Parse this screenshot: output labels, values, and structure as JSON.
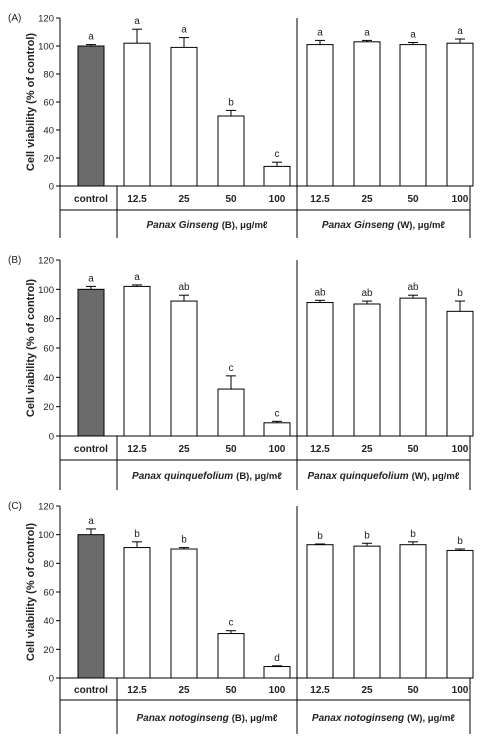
{
  "chart_data": [
    {
      "type": "bar",
      "panel_label": "(A)",
      "ylabel": "Cell viability (% of control)",
      "ylim": [
        0,
        120
      ],
      "yticks": [
        "0",
        "20",
        "40",
        "60",
        "80",
        "100",
        "120"
      ],
      "control_label": "control",
      "categories": [
        "control",
        "12.5",
        "25",
        "50",
        "100",
        "12.5",
        "25",
        "50",
        "100"
      ],
      "values": [
        100,
        102,
        99,
        50,
        14,
        101,
        103,
        101,
        102
      ],
      "errors": [
        1,
        10,
        7,
        4,
        3,
        3,
        1,
        1.5,
        3
      ],
      "significance": [
        "a",
        "a",
        "a",
        "b",
        "c",
        "a",
        "a",
        "a",
        "a"
      ],
      "groups": [
        {
          "name": "Panax Ginseng",
          "suffix": "(B), μg/mℓ"
        },
        {
          "name": "Panax Ginseng",
          "suffix": "(W), μg/mℓ"
        }
      ],
      "colors": {
        "control": "#6b6b6b",
        "treatment": "#ffffff"
      }
    },
    {
      "type": "bar",
      "panel_label": "(B)",
      "ylabel": "Cell viability (% of control)",
      "ylim": [
        0,
        120
      ],
      "yticks": [
        "0",
        "20",
        "40",
        "60",
        "80",
        "100",
        "120"
      ],
      "control_label": "control",
      "categories": [
        "control",
        "12.5",
        "25",
        "50",
        "100",
        "12.5",
        "25",
        "50",
        "100"
      ],
      "values": [
        100,
        102,
        92,
        32,
        9,
        91,
        90,
        94,
        85
      ],
      "errors": [
        2,
        1,
        4,
        9,
        1,
        1.5,
        2,
        2,
        7
      ],
      "significance": [
        "a",
        "a",
        "ab",
        "c",
        "c",
        "ab",
        "ab",
        "ab",
        "b"
      ],
      "groups": [
        {
          "name": "Panax quinquefolium",
          "suffix": "(B), μg/mℓ"
        },
        {
          "name": "Panax quinquefolium",
          "suffix": "(W), μg/mℓ"
        }
      ],
      "colors": {
        "control": "#6b6b6b",
        "treatment": "#ffffff"
      }
    },
    {
      "type": "bar",
      "panel_label": "(C)",
      "ylabel": "Cell viability (% of control)",
      "ylim": [
        0,
        120
      ],
      "yticks": [
        "0",
        "20",
        "40",
        "60",
        "80",
        "100",
        "120"
      ],
      "control_label": "control",
      "categories": [
        "control",
        "12.5",
        "25",
        "50",
        "100",
        "12.5",
        "25",
        "50",
        "100"
      ],
      "values": [
        100,
        91,
        90,
        31,
        8,
        93,
        92,
        93,
        89
      ],
      "errors": [
        4,
        4,
        1,
        2,
        0.5,
        0.5,
        2,
        2,
        1
      ],
      "significance": [
        "a",
        "b",
        "b",
        "c",
        "d",
        "b",
        "b",
        "b",
        "b"
      ],
      "groups": [
        {
          "name": "Panax notoginseng",
          "suffix": "(B), μg/mℓ"
        },
        {
          "name": "Panax notoginseng",
          "suffix": "(W), μg/mℓ"
        }
      ],
      "colors": {
        "control": "#6b6b6b",
        "treatment": "#ffffff"
      }
    }
  ]
}
